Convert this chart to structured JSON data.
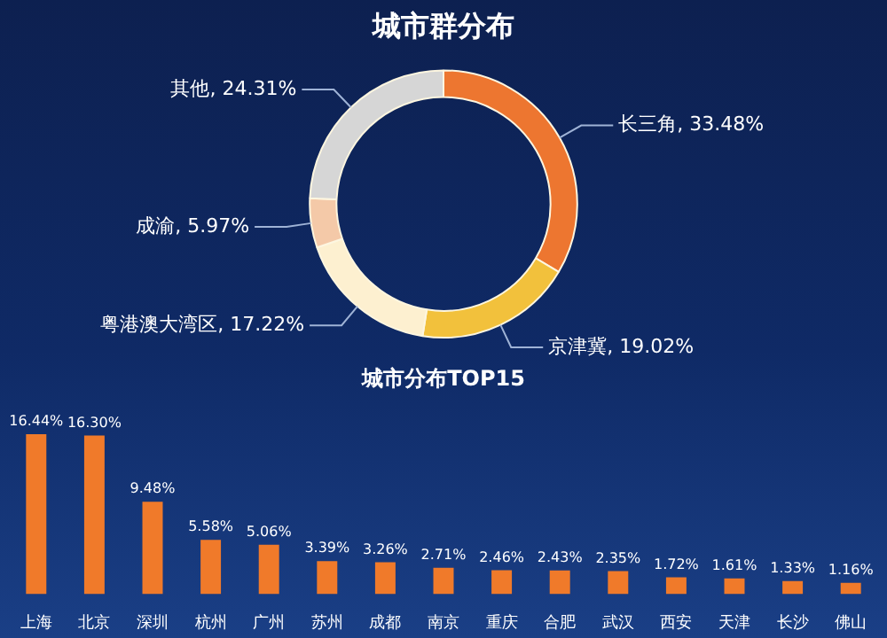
{
  "chart_data": [
    {
      "type": "donut",
      "title": "城市群分布",
      "categories": [
        "长三角",
        "京津冀",
        "粤港澳大湾区",
        "成渝",
        "其他"
      ],
      "values": [
        33.48,
        19.02,
        17.22,
        5.97,
        24.31
      ],
      "colors": [
        "#ed7630",
        "#f2c13c",
        "#fdf0d0",
        "#f4c9a8",
        "#d6d6d6"
      ],
      "value_labels": [
        "33.48%",
        "19.02%",
        "17.22%",
        "5.97%",
        "24.31%"
      ]
    },
    {
      "type": "bar",
      "title": "城市分布TOP15",
      "categories": [
        "上海",
        "北京",
        "深圳",
        "杭州",
        "广州",
        "苏州",
        "成都",
        "南京",
        "重庆",
        "合肥",
        "武汉",
        "西安",
        "天津",
        "长沙",
        "佛山"
      ],
      "values": [
        16.44,
        16.3,
        9.48,
        5.58,
        5.06,
        3.39,
        3.26,
        2.71,
        2.46,
        2.43,
        2.35,
        1.72,
        1.61,
        1.33,
        1.16
      ],
      "color": "#f07a2a",
      "value_labels": [
        "16.44%",
        "16.30%",
        "9.48%",
        "5.58%",
        "5.06%",
        "3.39%",
        "3.26%",
        "2.71%",
        "2.46%",
        "2.43%",
        "2.35%",
        "1.72%",
        "1.61%",
        "1.33%",
        "1.16%"
      ],
      "tick_labels": "x"
    }
  ]
}
